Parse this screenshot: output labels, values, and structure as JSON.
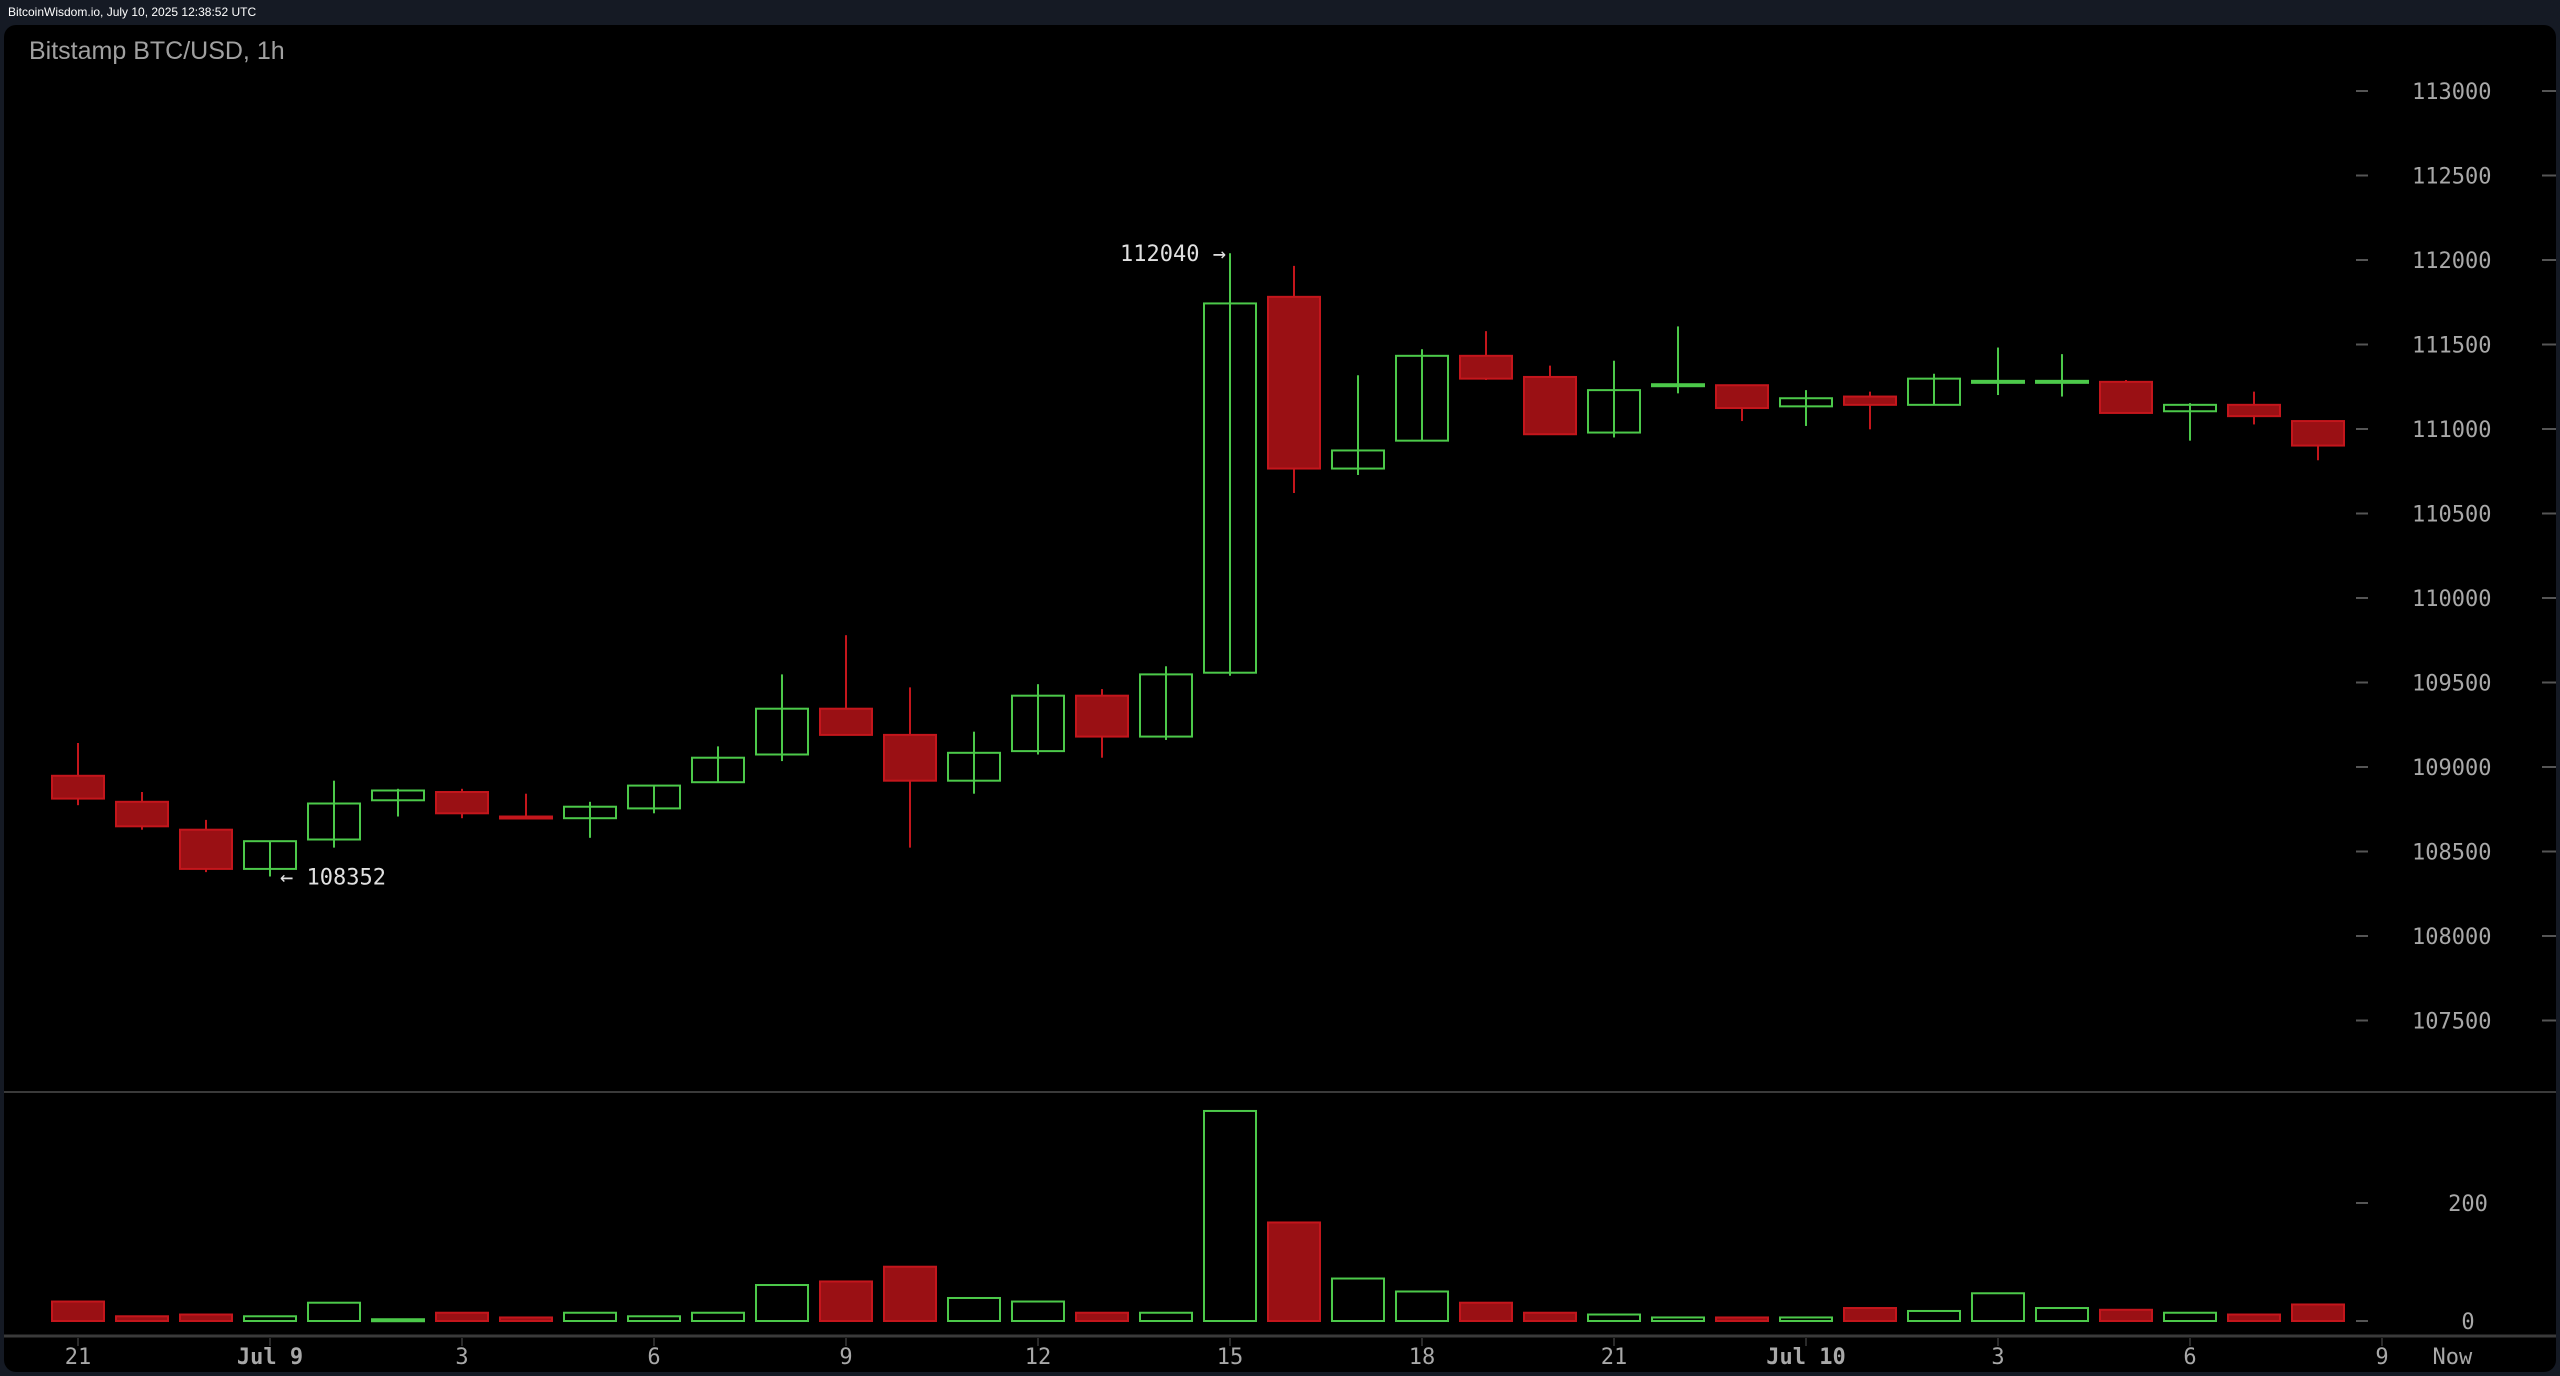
{
  "header": {
    "stamp": "BitcoinWisdom.io, July 10, 2025 12:38:52 UTC"
  },
  "chart_title": "Bitstamp BTC/USD, 1h",
  "colors": {
    "up": "#4cc94a",
    "down": "#c4161c",
    "down_fill": "#9a1014",
    "background": "#000000",
    "axis_text": "#a8a8a8"
  },
  "chart_data": [
    {
      "type": "candlestick",
      "title": "Bitstamp BTC/USD, 1h",
      "ylim": [
        107000,
        113200
      ],
      "y_ticks": [
        113000,
        112500,
        112000,
        111500,
        111000,
        110500,
        110000,
        109500,
        109000,
        108500,
        108000,
        107500
      ],
      "x_tick_labels": [
        "21",
        "Jul 9",
        "3",
        "6",
        "9",
        "12",
        "15",
        "18",
        "21",
        "Jul 10",
        "3",
        "6",
        "9",
        "Now"
      ],
      "x_tick_slots": [
        0,
        3,
        6,
        9,
        12,
        15,
        18,
        21,
        24,
        27,
        30,
        33,
        36,
        37.1
      ],
      "grid": false,
      "annotations": [
        {
          "label": "112040 →",
          "candle": 18,
          "price": 112040
        },
        {
          "label": "← 108352",
          "candle": 3,
          "price": 108352
        }
      ],
      "candles": [
        [
          108948,
          109142,
          108774,
          108813
        ],
        [
          108794,
          108852,
          108629,
          108649
        ],
        [
          108629,
          108687,
          108378,
          108397
        ],
        [
          108397,
          108561,
          108352,
          108561
        ],
        [
          108571,
          108919,
          108523,
          108784
        ],
        [
          108803,
          108871,
          108707,
          108861
        ],
        [
          108852,
          108871,
          108697,
          108726
        ],
        [
          108707,
          108842,
          108697,
          108697
        ],
        [
          108697,
          108794,
          108581,
          108765
        ],
        [
          108755,
          108890,
          108726,
          108890
        ],
        [
          108910,
          109122,
          108910,
          109055
        ],
        [
          109074,
          109548,
          109035,
          109345
        ],
        [
          109345,
          109780,
          109190,
          109190
        ],
        [
          109190,
          109471,
          108523,
          108919
        ],
        [
          108919,
          109209,
          108842,
          109084
        ],
        [
          109094,
          109490,
          109074,
          109422
        ],
        [
          109422,
          109461,
          109055,
          109180
        ],
        [
          109180,
          109596,
          109160,
          109548
        ],
        [
          109558,
          112040,
          109540,
          111743
        ],
        [
          111782,
          111965,
          110621,
          110766
        ],
        [
          110766,
          111318,
          110728,
          110873
        ],
        [
          110931,
          111472,
          110931,
          111433
        ],
        [
          111433,
          111579,
          111290,
          111298
        ],
        [
          111308,
          111375,
          110969,
          110969
        ],
        [
          110979,
          111404,
          110950,
          111230
        ],
        [
          111259,
          111607,
          111211,
          111265
        ],
        [
          111259,
          111259,
          111047,
          111124
        ],
        [
          111134,
          111230,
          111018,
          111182
        ],
        [
          111192,
          111221,
          110998,
          111143
        ],
        [
          111143,
          111327,
          111143,
          111298
        ],
        [
          111279,
          111482,
          111201,
          111285
        ],
        [
          111279,
          111443,
          111192,
          111285
        ],
        [
          111279,
          111290,
          111095,
          111095
        ],
        [
          111105,
          111153,
          110931,
          111143
        ],
        [
          111143,
          111221,
          111027,
          111076
        ],
        [
          111047,
          111047,
          110815,
          110902
        ]
      ],
      "candle_fields": [
        "open",
        "high",
        "low",
        "close"
      ]
    },
    {
      "type": "bar",
      "ylim": [
        0,
        380
      ],
      "y_ticks": [
        200,
        0
      ],
      "volumes": [
        33,
        8,
        11,
        8,
        31,
        3,
        14,
        6,
        14,
        8,
        14,
        61,
        67,
        92,
        39,
        33,
        14,
        14,
        356,
        167,
        72,
        50,
        31,
        14,
        11,
        6,
        6,
        6,
        22,
        17,
        47,
        22,
        19,
        14,
        11,
        28
      ]
    }
  ]
}
